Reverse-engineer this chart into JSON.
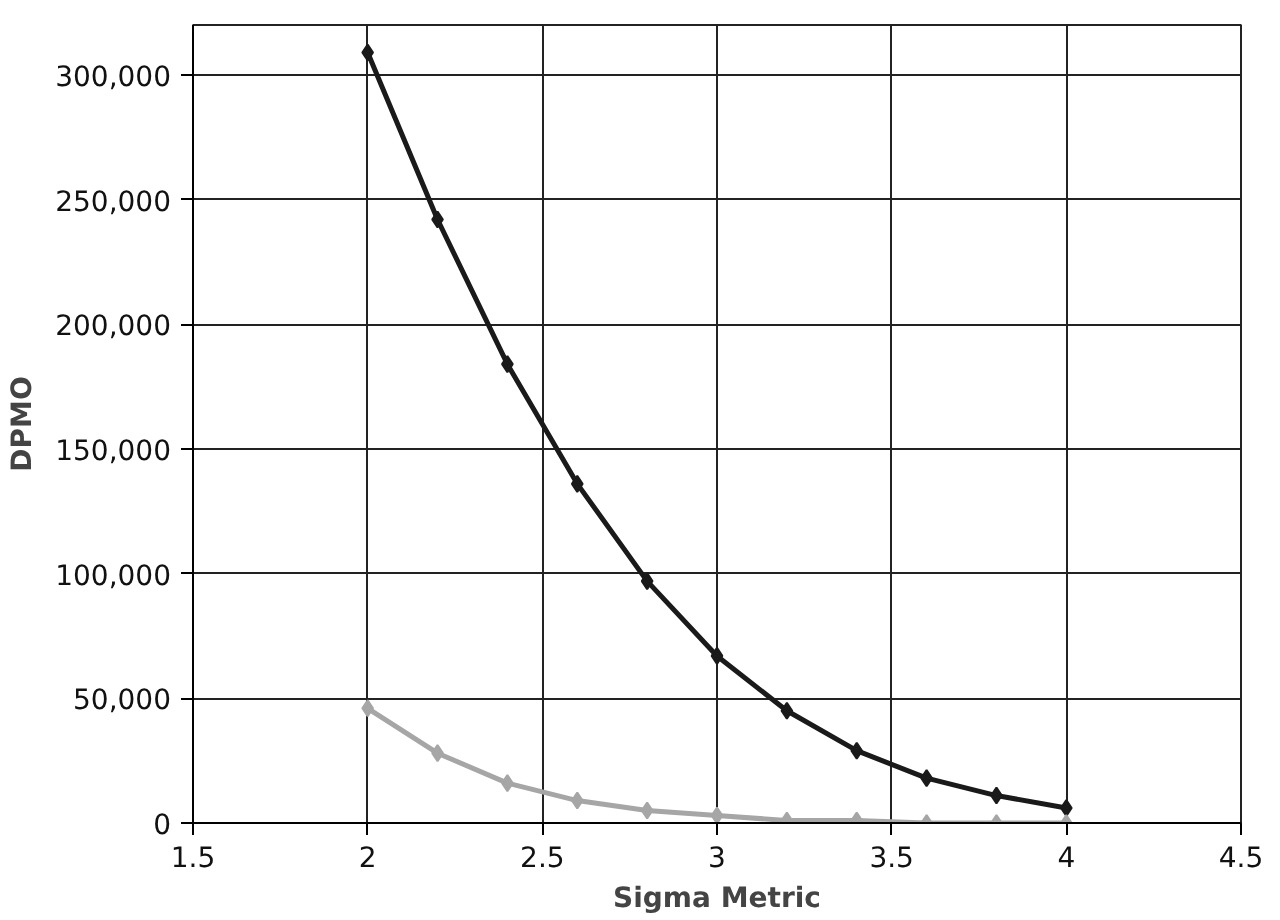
{
  "chart_data": {
    "type": "line",
    "xlabel": "Sigma Metric",
    "ylabel": "DPMO",
    "x": [
      2,
      2.2,
      2.4,
      2.6,
      2.8,
      3,
      3.2,
      3.4,
      3.6,
      3.8,
      4
    ],
    "series": [
      {
        "color": "#1a1a1a",
        "values": [
          309000,
          242000,
          184000,
          136000,
          97000,
          67000,
          45000,
          29000,
          18000,
          11000,
          6000
        ]
      },
      {
        "color": "#a6a6a6",
        "values": [
          46000,
          28000,
          16000,
          9000,
          5000,
          3000,
          1000,
          1000,
          0,
          0,
          0
        ]
      }
    ],
    "xlim": [
      1.5,
      4.5
    ],
    "xticks": [
      1.5,
      2,
      2.5,
      3,
      3.5,
      4,
      4.5
    ],
    "ylim": [
      0,
      320000
    ],
    "yticks": [
      0,
      {
        "value": 50000,
        "label": "50,000"
      },
      {
        "value": 100000,
        "label": "100,000"
      },
      {
        "value": 150000,
        "label": "150,000"
      },
      {
        "value": 200000,
        "label": "200,000"
      },
      {
        "value": 250000,
        "label": "250,000"
      },
      {
        "value": 300000,
        "label": "300,000"
      }
    ],
    "grid": true,
    "marker": "diamond",
    "line_style": "solid"
  }
}
